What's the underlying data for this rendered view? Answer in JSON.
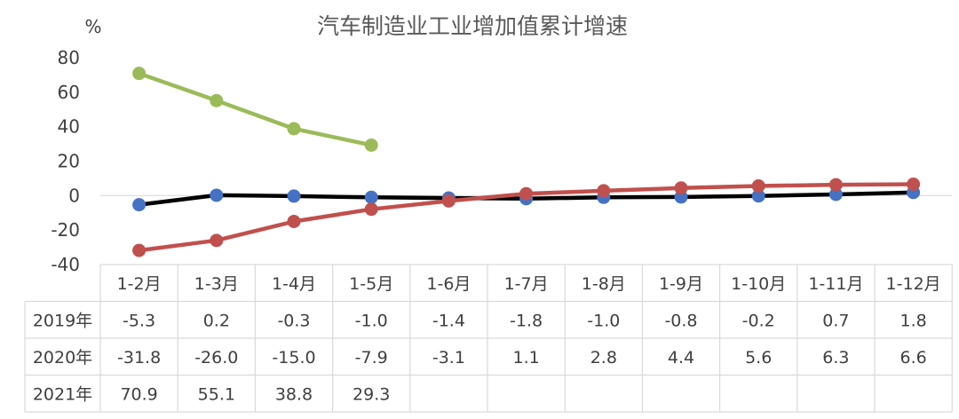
{
  "chart_data": {
    "type": "line",
    "title": "汽车制造业工业增加值累计增速",
    "ylabel": "%",
    "ylim": [
      -40,
      80
    ],
    "yticks": [
      80,
      60,
      40,
      20,
      0,
      -20,
      -40
    ],
    "categories": [
      "1-2月",
      "1-3月",
      "1-4月",
      "1-5月",
      "1-6月",
      "1-7月",
      "1-8月",
      "1-9月",
      "1-10月",
      "1-11月",
      "1-12月"
    ],
    "series": [
      {
        "name": "2019年",
        "color": "#000000",
        "marker_color": "#4472c4",
        "values": [
          -5.3,
          0.2,
          -0.3,
          -1.0,
          -1.4,
          -1.8,
          -1.0,
          -0.8,
          -0.2,
          0.7,
          1.8
        ]
      },
      {
        "name": "2020年",
        "color": "#c0504d",
        "marker_color": "#c0504d",
        "values": [
          -31.8,
          -26.0,
          -15.0,
          -7.9,
          -3.1,
          1.1,
          2.8,
          4.4,
          5.6,
          6.3,
          6.6
        ]
      },
      {
        "name": "2021年",
        "color": "#9bbb59",
        "marker_color": "#9bbb59",
        "values": [
          70.9,
          55.1,
          38.8,
          29.3,
          null,
          null,
          null,
          null,
          null,
          null,
          null
        ]
      }
    ],
    "table": {
      "rows": [
        {
          "label": "2019年",
          "cells": [
            "-5.3",
            "0.2",
            "-0.3",
            "-1.0",
            "-1.4",
            "-1.8",
            "-1.0",
            "-0.8",
            "-0.2",
            "0.7",
            "1.8"
          ]
        },
        {
          "label": "2020年",
          "cells": [
            "-31.8",
            "-26.0",
            "-15.0",
            "-7.9",
            "-3.1",
            "1.1",
            "2.8",
            "4.4",
            "5.6",
            "6.3",
            "6.6"
          ]
        },
        {
          "label": "2021年",
          "cells": [
            "70.9",
            "55.1",
            "38.8",
            "29.3",
            "",
            "",
            "",
            "",
            "",
            "",
            ""
          ]
        }
      ]
    },
    "grid": false,
    "legend": "data-table"
  }
}
